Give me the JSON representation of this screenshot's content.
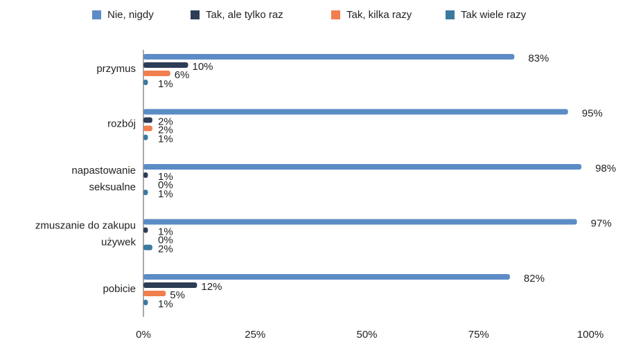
{
  "chart_data": {
    "type": "bar",
    "orientation": "horizontal",
    "categories": [
      [
        "przymus"
      ],
      [
        "rozbój"
      ],
      [
        "napastowanie",
        "seksualne"
      ],
      [
        "zmuszanie do zakupu",
        "używek"
      ],
      [
        "pobicie"
      ]
    ],
    "series": [
      {
        "name": "Nie, nigdy",
        "color": "#5b8cc6",
        "values": [
          83,
          95,
          98,
          97,
          82
        ],
        "value_labels": [
          "83%",
          "95%",
          "98%",
          "97%",
          "82%"
        ]
      },
      {
        "name": "Tak, ale tylko raz",
        "color": "#2d3d56",
        "values": [
          10,
          2,
          1,
          1,
          12
        ],
        "value_labels": [
          "10%",
          "2%",
          "1%",
          "1%",
          "12%"
        ]
      },
      {
        "name": "Tak, kilka razy",
        "color": "#f07e4e",
        "values": [
          6,
          2,
          0,
          0,
          5
        ],
        "value_labels": [
          "6%",
          "2%",
          "0%",
          "0%",
          "5%"
        ]
      },
      {
        "name": "Tak wiele razy",
        "color": "#3b7aa0",
        "values": [
          1,
          1,
          1,
          2,
          1
        ],
        "value_labels": [
          "1%",
          "1%",
          "1%",
          "2%",
          "1%"
        ]
      }
    ],
    "xlim": [
      0,
      100
    ],
    "xticks": [
      {
        "value": 0,
        "label": "0%"
      },
      {
        "value": 25,
        "label": "25%"
      },
      {
        "value": 50,
        "label": "50%"
      },
      {
        "value": 75,
        "label": "75%"
      },
      {
        "value": 100,
        "label": "100%"
      }
    ],
    "legend": "top"
  }
}
